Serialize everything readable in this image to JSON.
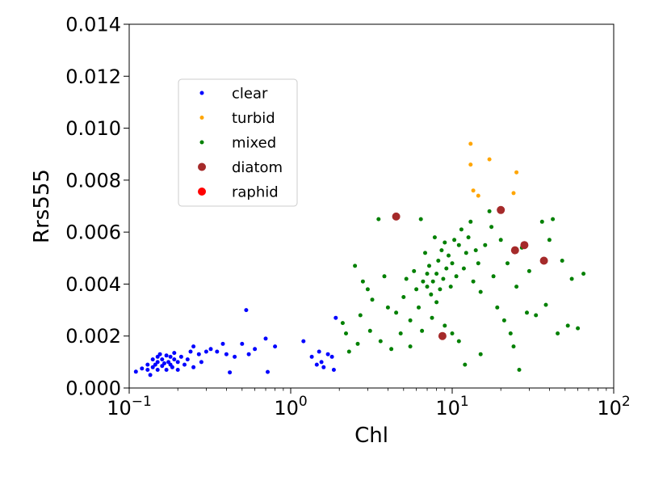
{
  "chart_data": {
    "type": "scatter",
    "title": "",
    "xlabel": "Chl",
    "ylabel": "Rrs555",
    "xscale": "log",
    "xlim": [
      0.1,
      100
    ],
    "ylim": [
      0,
      0.014
    ],
    "grid": false,
    "legend_placement": "upper-left",
    "x_ticks": [
      {
        "value": 0.1,
        "base": "10",
        "exp": "−1"
      },
      {
        "value": 1,
        "base": "10",
        "exp": "0"
      },
      {
        "value": 10,
        "base": "10",
        "exp": "1"
      },
      {
        "value": 100,
        "base": "10",
        "exp": "2"
      }
    ],
    "y_ticks": [
      {
        "value": 0,
        "label": "0.000"
      },
      {
        "value": 0.002,
        "label": "0.002"
      },
      {
        "value": 0.004,
        "label": "0.004"
      },
      {
        "value": 0.006,
        "label": "0.006"
      },
      {
        "value": 0.008,
        "label": "0.008"
      },
      {
        "value": 0.01,
        "label": "0.010"
      },
      {
        "value": 0.012,
        "label": "0.012"
      },
      {
        "value": 0.014,
        "label": "0.014"
      }
    ],
    "series": [
      {
        "name": "clear",
        "color": "#0000ff",
        "size": "small",
        "points": [
          [
            0.11,
            0.00063
          ],
          [
            0.12,
            0.00075
          ],
          [
            0.13,
            0.0009
          ],
          [
            0.13,
            0.0007
          ],
          [
            0.135,
            0.0005
          ],
          [
            0.14,
            0.0011
          ],
          [
            0.14,
            0.0008
          ],
          [
            0.145,
            0.0009
          ],
          [
            0.15,
            0.0012
          ],
          [
            0.15,
            0.001
          ],
          [
            0.15,
            0.0007
          ],
          [
            0.155,
            0.0013
          ],
          [
            0.16,
            0.00085
          ],
          [
            0.16,
            0.0011
          ],
          [
            0.165,
            0.00095
          ],
          [
            0.17,
            0.00125
          ],
          [
            0.17,
            0.0007
          ],
          [
            0.175,
            0.001
          ],
          [
            0.18,
            0.0012
          ],
          [
            0.18,
            0.0009
          ],
          [
            0.185,
            0.0008
          ],
          [
            0.19,
            0.0011
          ],
          [
            0.19,
            0.00135
          ],
          [
            0.2,
            0.001
          ],
          [
            0.2,
            0.0007
          ],
          [
            0.21,
            0.0012
          ],
          [
            0.22,
            0.0009
          ],
          [
            0.23,
            0.0011
          ],
          [
            0.24,
            0.0014
          ],
          [
            0.25,
            0.0008
          ],
          [
            0.25,
            0.0016
          ],
          [
            0.27,
            0.0013
          ],
          [
            0.28,
            0.001
          ],
          [
            0.3,
            0.0014
          ],
          [
            0.32,
            0.0015
          ],
          [
            0.35,
            0.0014
          ],
          [
            0.38,
            0.0017
          ],
          [
            0.4,
            0.0013
          ],
          [
            0.42,
            0.0006
          ],
          [
            0.45,
            0.0012
          ],
          [
            0.5,
            0.0017
          ],
          [
            0.53,
            0.003
          ],
          [
            0.55,
            0.0013
          ],
          [
            0.6,
            0.0015
          ],
          [
            0.7,
            0.0019
          ],
          [
            0.72,
            0.00062
          ],
          [
            0.8,
            0.0016
          ],
          [
            1.2,
            0.0018
          ],
          [
            1.35,
            0.0012
          ],
          [
            1.45,
            0.0009
          ],
          [
            1.5,
            0.0014
          ],
          [
            1.55,
            0.001
          ],
          [
            1.6,
            0.0008
          ],
          [
            1.7,
            0.0013
          ],
          [
            1.8,
            0.0012
          ],
          [
            1.85,
            0.0007
          ],
          [
            1.9,
            0.0027
          ]
        ]
      },
      {
        "name": "turbid",
        "color": "#ffa500",
        "size": "small",
        "points": [
          [
            13,
            0.0094
          ],
          [
            13,
            0.0086
          ],
          [
            13.5,
            0.0076
          ],
          [
            14.5,
            0.0074
          ],
          [
            17,
            0.0088
          ],
          [
            25,
            0.0083
          ],
          [
            24,
            0.0075
          ]
        ]
      },
      {
        "name": "mixed",
        "color": "#008000",
        "size": "small",
        "points": [
          [
            2.1,
            0.0025
          ],
          [
            2.2,
            0.0021
          ],
          [
            2.3,
            0.0014
          ],
          [
            2.5,
            0.0047
          ],
          [
            2.6,
            0.0017
          ],
          [
            2.7,
            0.0028
          ],
          [
            2.8,
            0.0041
          ],
          [
            3,
            0.0038
          ],
          [
            3.1,
            0.0022
          ],
          [
            3.2,
            0.0034
          ],
          [
            3.5,
            0.0065
          ],
          [
            3.6,
            0.0018
          ],
          [
            3.8,
            0.0043
          ],
          [
            4,
            0.0031
          ],
          [
            4.2,
            0.0015
          ],
          [
            4.5,
            0.0029
          ],
          [
            4.8,
            0.0021
          ],
          [
            5,
            0.0035
          ],
          [
            5.2,
            0.0042
          ],
          [
            5.5,
            0.0026
          ],
          [
            5.8,
            0.0045
          ],
          [
            6,
            0.0038
          ],
          [
            6.2,
            0.0031
          ],
          [
            6.4,
            0.0065
          ],
          [
            6.6,
            0.0041
          ],
          [
            6.8,
            0.0052
          ],
          [
            7,
            0.0039
          ],
          [
            7.2,
            0.0047
          ],
          [
            7.4,
            0.0036
          ],
          [
            7.6,
            0.0041
          ],
          [
            7.8,
            0.0058
          ],
          [
            8,
            0.0044
          ],
          [
            8.2,
            0.0049
          ],
          [
            8.4,
            0.0038
          ],
          [
            8.6,
            0.0053
          ],
          [
            8.8,
            0.0042
          ],
          [
            9,
            0.0056
          ],
          [
            9.2,
            0.0046
          ],
          [
            9.5,
            0.0051
          ],
          [
            9.8,
            0.0039
          ],
          [
            10,
            0.0048
          ],
          [
            10.3,
            0.0057
          ],
          [
            10.6,
            0.0043
          ],
          [
            11,
            0.0055
          ],
          [
            11.4,
            0.0061
          ],
          [
            11.8,
            0.0046
          ],
          [
            12.2,
            0.0052
          ],
          [
            12.6,
            0.0058
          ],
          [
            13,
            0.0064
          ],
          [
            13.5,
            0.0041
          ],
          [
            14,
            0.0053
          ],
          [
            14.5,
            0.0048
          ],
          [
            15,
            0.0037
          ],
          [
            16,
            0.0055
          ],
          [
            17,
            0.0068
          ],
          [
            17.5,
            0.0062
          ],
          [
            18,
            0.0043
          ],
          [
            19,
            0.0031
          ],
          [
            20,
            0.0057
          ],
          [
            21,
            0.0026
          ],
          [
            22,
            0.0048
          ],
          [
            23,
            0.0021
          ],
          [
            24,
            0.0016
          ],
          [
            25,
            0.0039
          ],
          [
            26,
            0.0007
          ],
          [
            27,
            0.0054
          ],
          [
            29,
            0.0029
          ],
          [
            30,
            0.0045
          ],
          [
            33,
            0.0028
          ],
          [
            36,
            0.0064
          ],
          [
            38,
            0.0032
          ],
          [
            40,
            0.0057
          ],
          [
            42,
            0.0065
          ],
          [
            45,
            0.0021
          ],
          [
            48,
            0.0049
          ],
          [
            52,
            0.0024
          ],
          [
            55,
            0.0042
          ],
          [
            60,
            0.0023
          ],
          [
            65,
            0.0044
          ],
          [
            7,
            0.0044
          ],
          [
            8,
            0.0033
          ],
          [
            9,
            0.0024
          ],
          [
            10,
            0.0021
          ],
          [
            11,
            0.0018
          ],
          [
            12,
            0.0009
          ],
          [
            6.5,
            0.0022
          ],
          [
            5.5,
            0.0016
          ],
          [
            7.5,
            0.0027
          ],
          [
            15,
            0.0013
          ]
        ]
      },
      {
        "name": "diatom",
        "color": "#a52a2a",
        "size": "large",
        "points": [
          [
            4.5,
            0.0066
          ],
          [
            8.7,
            0.002
          ],
          [
            20,
            0.00685
          ],
          [
            24.5,
            0.0053
          ],
          [
            28,
            0.0055
          ],
          [
            37,
            0.0049
          ]
        ]
      },
      {
        "name": "raphid",
        "color": "#ff0000",
        "size": "large",
        "points": []
      }
    ]
  }
}
